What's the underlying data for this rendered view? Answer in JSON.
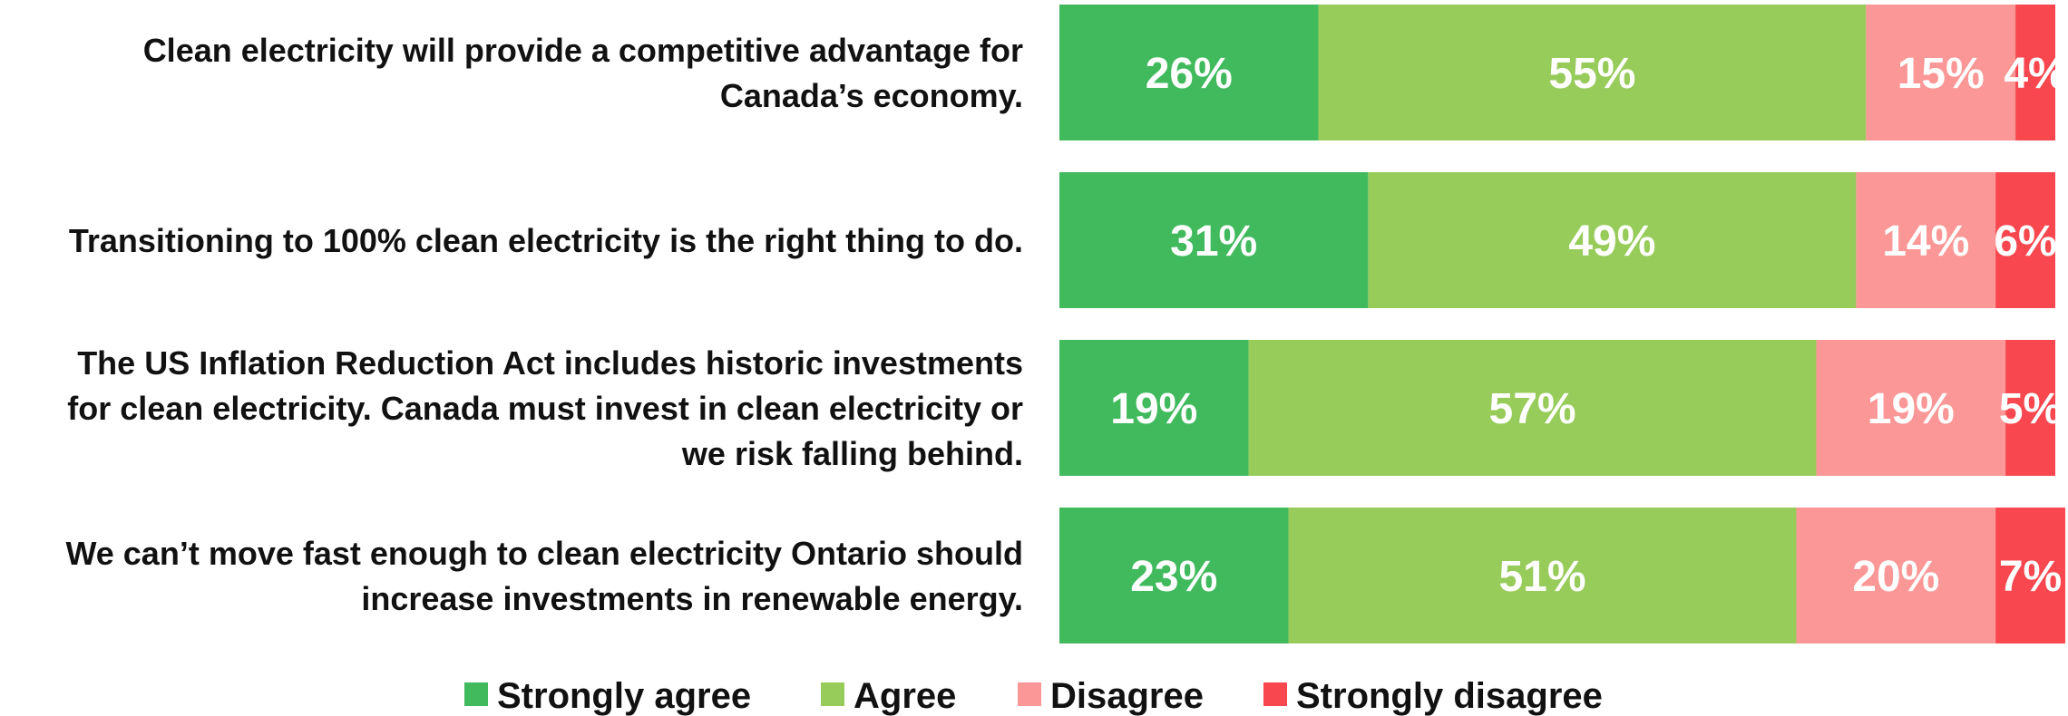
{
  "chart_data": {
    "type": "bar",
    "orientation": "horizontal",
    "stacked": true,
    "normalized_percent": true,
    "title": "",
    "xlabel": "",
    "ylabel": "",
    "xlim": [
      0,
      100
    ],
    "grid": false,
    "legend_position": "bottom",
    "categories": [
      [
        "Clean electricity will provide a competitive advantage for",
        "Canada’s economy."
      ],
      [
        "Transitioning to 100% clean electricity is the right thing to do."
      ],
      [
        "The US Inflation Reduction Act includes historic investments",
        "for clean electricity. Canada must invest in clean electricity or",
        "we risk falling behind."
      ],
      [
        "We can’t move fast enough to clean electricity  Ontario should",
        "increase investments in renewable energy."
      ]
    ],
    "series": [
      {
        "name": "Strongly agree",
        "color": "#41BA5E",
        "values": [
          26,
          31,
          19,
          23
        ]
      },
      {
        "name": "Agree",
        "color": "#97CB5A",
        "values": [
          55,
          49,
          57,
          51
        ]
      },
      {
        "name": "Disagree",
        "color": "#FB9796",
        "values": [
          15,
          14,
          19,
          20
        ]
      },
      {
        "name": "Strongly disagree",
        "color": "#F8474F",
        "values": [
          4,
          6,
          5,
          7
        ]
      }
    ],
    "value_suffix": "%"
  }
}
